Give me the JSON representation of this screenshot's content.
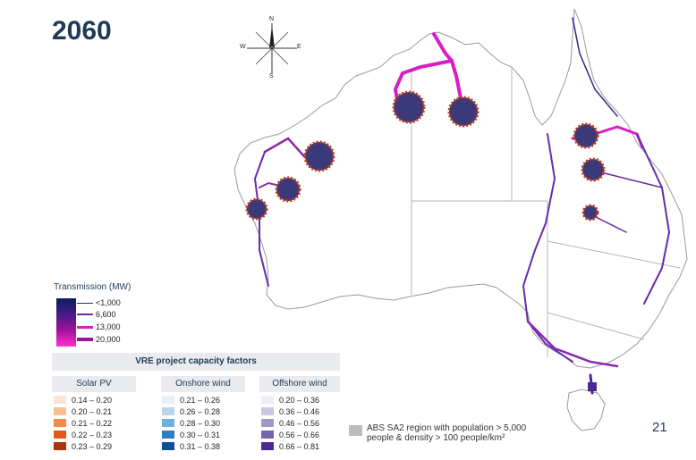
{
  "title": "2060",
  "page_number": "21",
  "compass": {
    "n": "N",
    "s": "S",
    "e": "E",
    "w": "W"
  },
  "transmission_legend": {
    "title": "Transmission (MW)",
    "items": [
      {
        "label": "<1,000",
        "color": "#2a2a8a"
      },
      {
        "label": "6,600",
        "color": "#6a2aa8"
      },
      {
        "label": "13,000",
        "color": "#d81ec6"
      },
      {
        "label": "20,000",
        "color": "#a0109a"
      }
    ]
  },
  "vre": {
    "title": "VRE project capacity factors",
    "solar": {
      "label": "Solar PV",
      "items": [
        {
          "label": "0.14 – 0.20",
          "color": "#fde3d3"
        },
        {
          "label": "0.20 – 0.21",
          "color": "#fbbf98"
        },
        {
          "label": "0.21 – 0.22",
          "color": "#f7894a"
        },
        {
          "label": "0.22 – 0.23",
          "color": "#e15a17"
        },
        {
          "label": "0.23 – 0.29",
          "color": "#a83408"
        }
      ]
    },
    "onshore": {
      "label": "Onshore wind",
      "items": [
        {
          "label": "0.21 – 0.26",
          "color": "#e6f0f9"
        },
        {
          "label": "0.26 – 0.28",
          "color": "#b9d6ec"
        },
        {
          "label": "0.28 – 0.30",
          "color": "#6fb0dc"
        },
        {
          "label": "0.30 – 0.31",
          "color": "#2f7ec2"
        },
        {
          "label": "0.31 – 0.38",
          "color": "#0f4f96"
        }
      ]
    },
    "offshore": {
      "label": "Offshore wind",
      "items": [
        {
          "label": "0.20 – 0.36",
          "color": "#efedf6"
        },
        {
          "label": "0.36 – 0.46",
          "color": "#cbc7e2"
        },
        {
          "label": "0.46 – 0.56",
          "color": "#9f98c9"
        },
        {
          "label": "0.56 – 0.66",
          "color": "#7465ae"
        },
        {
          "label": "0.66 – 0.81",
          "color": "#4a2a92"
        }
      ]
    }
  },
  "abs_note": {
    "line1": "ABS SA2 region with population > 5,000",
    "line2": "people & density > 100 people/km²"
  }
}
